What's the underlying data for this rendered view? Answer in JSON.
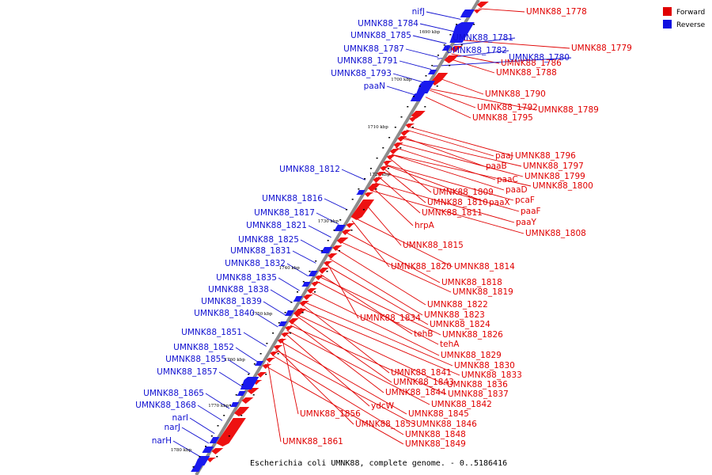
{
  "caption": "Escherichia coli UMNK88, complete genome. - 0..5186416",
  "legend": {
    "forward_label": "Forward",
    "reverse_label": "Reverse",
    "forward_color": "#e00000",
    "reverse_color": "#1010e0"
  },
  "colors": {
    "backbone": "#8c8c8c",
    "forward": "#ee1111",
    "reverse": "#1a1aee",
    "tick": "#000000"
  },
  "ticks": [
    "1690 kbp",
    "1700 kbp",
    "1710 kbp",
    "1720 kbp",
    "1730 kbp",
    "1740 kbp",
    "1750 kbp",
    "1760 kbp",
    "1770 kbp",
    "1780 kbp"
  ],
  "forward_labels": [
    "UMNK88_1778",
    "UMNK88_1779",
    "UMNK88_1786",
    "UMNK88_1788",
    "UMNK88_1790",
    "UMNK88_1792",
    "UMNK88_1789",
    "UMNK88_1795",
    "paaJ",
    "UMNK88_1796",
    "paaB",
    "UMNK88_1797",
    "UMNK88_1799",
    "paaC",
    "UMNK88_1800",
    "paaD",
    "UMNK88_1809",
    "UMNK88_1810",
    "paaX",
    "pcaF",
    "UMNK88_1811",
    "paaF",
    "paaY",
    "hrpA",
    "UMNK88_1808",
    "UMNK88_1815",
    "UMNK88_1820",
    "UMNK88_1814",
    "UMNK88_1818",
    "UMNK88_1819",
    "UMNK88_1822",
    "UMNK88_1823",
    "UMNK88_1834",
    "UMNK88_1824",
    "tehB",
    "UMNK88_1826",
    "tehA",
    "UMNK88_1829",
    "UMNK88_1830",
    "UMNK88_1841",
    "UMNK88_1833",
    "UMNK88_1843",
    "UMNK88_1836",
    "UMNK88_1844",
    "UMNK88_1837",
    "UMNK88_1842",
    "ydcW",
    "UMNK88_1845",
    "UMNK88_1856",
    "UMNK88_1853",
    "UMNK88_1846",
    "UMNK88_1848",
    "UMNK88_1861",
    "UMNK88_1849"
  ],
  "reverse_labels": [
    "nifJ",
    "UMNK88_1784",
    "UMNK88_1785",
    "UMNK88_1781",
    "UMNK88_1787",
    "UMNK88_1782",
    "UMNK88_1780",
    "UMNK88_1791",
    "UMNK88_1793",
    "paaN",
    "UMNK88_1812",
    "UMNK88_1816",
    "UMNK88_1817",
    "UMNK88_1821",
    "UMNK88_1825",
    "UMNK88_1831",
    "UMNK88_1832",
    "UMNK88_1835",
    "UMNK88_1838",
    "UMNK88_1839",
    "UMNK88_1840",
    "UMNK88_1851",
    "UMNK88_1852",
    "UMNK88_1855",
    "UMNK88_1857",
    "UMNK88_1865",
    "UMNK88_1868",
    "narI",
    "narJ",
    "narH"
  ]
}
